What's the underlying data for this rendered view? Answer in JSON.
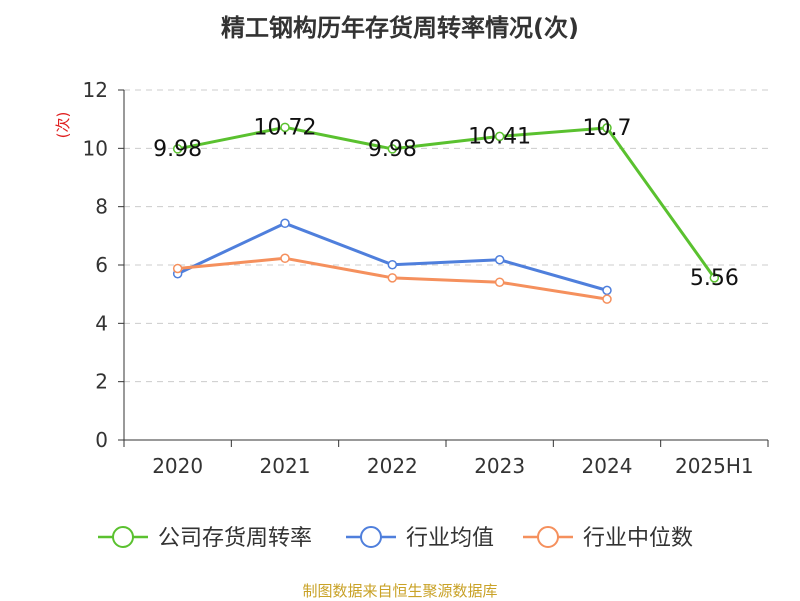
{
  "chart_data": {
    "type": "line",
    "title": "精工钢构历年存货周转率情况(次)",
    "ylabel": "(次)",
    "xlabel": "",
    "categories": [
      "2020",
      "2021",
      "2022",
      "2023",
      "2024",
      "2025H1"
    ],
    "ylim": [
      0,
      12
    ],
    "yticks": [
      0,
      2,
      4,
      6,
      8,
      10,
      12
    ],
    "grid": true,
    "legend_position": "bottom",
    "series": [
      {
        "name": "公司存货周转率",
        "color": "#5ac12f",
        "values": [
          9.98,
          10.72,
          9.98,
          10.41,
          10.7,
          5.56
        ],
        "labels": [
          "9.98",
          "10.72",
          "9.98",
          "10.41",
          "10.7",
          "5.56"
        ]
      },
      {
        "name": "行业均值",
        "color": "#4f7fdc",
        "values": [
          5.7,
          7.43,
          6.01,
          6.18,
          5.13,
          null
        ]
      },
      {
        "name": "行业中位数",
        "color": "#f5905d",
        "values": [
          5.88,
          6.23,
          5.56,
          5.41,
          4.83,
          null
        ]
      }
    ]
  },
  "source_note": "制图数据来自恒生聚源数据库"
}
